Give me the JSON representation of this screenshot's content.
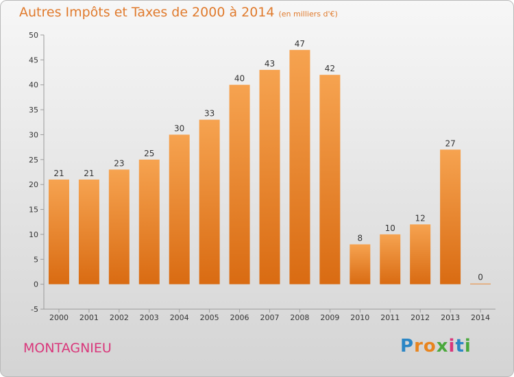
{
  "chart_data": {
    "type": "bar",
    "title": "Autres Impôts et Taxes de 2000 à 2014",
    "subtitle": "(en milliers d'€)",
    "categories": [
      "2000",
      "2001",
      "2002",
      "2003",
      "2004",
      "2005",
      "2006",
      "2007",
      "2008",
      "2009",
      "2010",
      "2011",
      "2012",
      "2013",
      "2014"
    ],
    "values": [
      21,
      21,
      23,
      25,
      30,
      33,
      40,
      43,
      47,
      42,
      8,
      10,
      12,
      27,
      0
    ],
    "ylim": [
      -5,
      50
    ],
    "yticks": [
      "-5",
      "0",
      "5",
      "10",
      "15",
      "20",
      "25",
      "30",
      "35",
      "40",
      "45",
      "50"
    ],
    "grid": false,
    "bar_color": "#f08a2e"
  },
  "footer": {
    "commune": "MONTAGNIEU",
    "brand_letters": [
      "P",
      "r",
      "o",
      "x",
      "i",
      "t",
      "i"
    ],
    "brand_colors": [
      "#2b86c5",
      "#e8841e",
      "#e8841e",
      "#4aa83c",
      "#d9367a",
      "#2b86c5",
      "#4aa83c"
    ]
  }
}
